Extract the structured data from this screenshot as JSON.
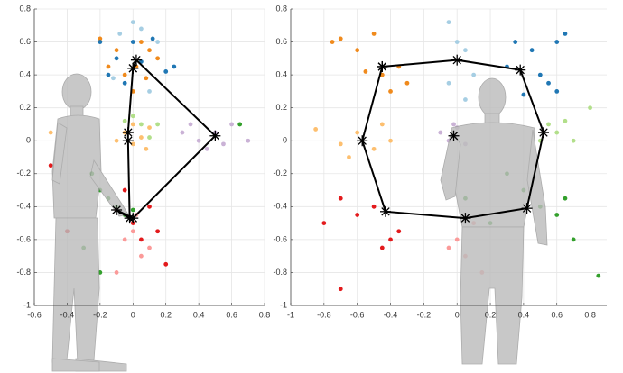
{
  "chart_data": [
    {
      "type": "scatter",
      "xlim": [
        -0.6,
        0.8
      ],
      "ylim": [
        -1,
        0.8
      ],
      "xticks": [
        -0.6,
        -0.4,
        -0.2,
        0,
        0.2,
        0.4,
        0.6,
        0.8
      ],
      "yticks": [
        -1,
        -0.8,
        -0.6,
        -0.4,
        -0.2,
        0,
        0.2,
        0.4,
        0.6,
        0.8
      ],
      "grid": true,
      "series": [
        {
          "color": "#f08a1c",
          "style": "dots",
          "x": [
            -0.2,
            -0.1,
            0.05,
            0.1,
            0.02,
            -0.05,
            0.08,
            0.15,
            -0.15,
            0.0
          ],
          "y": [
            0.62,
            0.55,
            0.6,
            0.55,
            0.45,
            0.4,
            0.38,
            0.5,
            0.45,
            0.3
          ]
        },
        {
          "color": "#2077b4",
          "style": "dots",
          "x": [
            -0.2,
            -0.1,
            -0.15,
            0.05,
            0.12,
            0.2,
            -0.05,
            0.25,
            0.0
          ],
          "y": [
            0.6,
            0.5,
            0.4,
            0.48,
            0.62,
            0.42,
            0.35,
            0.45,
            0.6
          ]
        },
        {
          "color": "#a6cee3",
          "style": "dots",
          "x": [
            -0.12,
            0.0,
            0.05,
            -0.08,
            0.1,
            0.15
          ],
          "y": [
            0.38,
            0.72,
            0.68,
            0.65,
            0.3,
            0.6
          ]
        },
        {
          "color": "#fdbf6f",
          "style": "dots",
          "x": [
            -0.05,
            0.0,
            0.05,
            0.1,
            -0.1,
            0.08,
            -0.5,
            0.0
          ],
          "y": [
            0.05,
            -0.02,
            0.02,
            0.08,
            0.0,
            -0.05,
            0.05,
            0.1
          ]
        },
        {
          "color": "#b2df8a",
          "style": "dots",
          "x": [
            -0.05,
            0.05,
            0.0,
            0.1,
            -0.25,
            0.15
          ],
          "y": [
            0.12,
            0.1,
            0.15,
            0.02,
            -0.2,
            0.1
          ]
        },
        {
          "color": "#cab2d6",
          "style": "dots",
          "x": [
            0.3,
            0.4,
            0.5,
            0.6,
            0.55,
            0.7,
            0.35,
            0.45
          ],
          "y": [
            0.05,
            0.0,
            0.05,
            0.1,
            -0.02,
            0.0,
            0.1,
            -0.05
          ]
        },
        {
          "color": "#33a02c",
          "style": "dots",
          "x": [
            -0.2,
            -0.15,
            -0.1,
            -0.3,
            -0.25,
            -0.05,
            -0.2,
            0.0,
            0.65
          ],
          "y": [
            -0.3,
            -0.35,
            -0.4,
            -0.65,
            -0.2,
            -0.45,
            -0.8,
            -0.42,
            0.1
          ]
        },
        {
          "color": "#e31a1c",
          "style": "dots",
          "x": [
            -0.5,
            -0.1,
            0.0,
            0.05,
            0.1,
            0.15,
            -0.05,
            0.2,
            -0.4
          ],
          "y": [
            -0.15,
            -0.42,
            -0.5,
            -0.6,
            -0.4,
            -0.55,
            -0.3,
            -0.75,
            -0.55
          ]
        },
        {
          "color": "#fb9a99",
          "style": "dots",
          "x": [
            0.0,
            0.05,
            -0.05,
            0.1,
            0.02,
            -0.1
          ],
          "y": [
            -0.55,
            -0.7,
            -0.6,
            -0.65,
            -0.45,
            -0.8
          ]
        },
        {
          "color": "#000000",
          "style": "star-line",
          "x": [
            0.0,
            0.02,
            0.5,
            0.0,
            -0.1,
            -0.02,
            -0.03,
            -0.03,
            0.0
          ],
          "y": [
            0.44,
            0.49,
            0.03,
            -0.47,
            -0.42,
            -0.47,
            0.0,
            0.05,
            0.44
          ]
        }
      ]
    },
    {
      "type": "scatter",
      "xlim": [
        -1,
        0.9
      ],
      "ylim": [
        -1,
        0.8
      ],
      "xticks": [
        -1,
        -0.8,
        -0.6,
        -0.4,
        -0.2,
        0,
        0.2,
        0.4,
        0.6,
        0.8
      ],
      "yticks": [
        -1,
        -0.8,
        -0.6,
        -0.4,
        -0.2,
        0,
        0.2,
        0.4,
        0.6,
        0.8
      ],
      "grid": true,
      "series": [
        {
          "color": "#f08a1c",
          "style": "dots",
          "x": [
            -0.7,
            -0.75,
            -0.6,
            -0.45,
            -0.35,
            -0.3,
            -0.55,
            -0.4,
            -0.5
          ],
          "y": [
            0.62,
            0.6,
            0.55,
            0.4,
            0.45,
            0.35,
            0.42,
            0.3,
            0.65
          ]
        },
        {
          "color": "#2077b4",
          "style": "dots",
          "x": [
            0.35,
            0.45,
            0.6,
            0.65,
            0.5,
            0.55,
            0.3,
            0.4,
            0.6
          ],
          "y": [
            0.6,
            0.55,
            0.6,
            0.65,
            0.4,
            0.35,
            0.45,
            0.28,
            0.3
          ]
        },
        {
          "color": "#a6cee3",
          "style": "dots",
          "x": [
            -0.05,
            0.0,
            0.05,
            -0.05,
            0.1,
            0.05
          ],
          "y": [
            0.72,
            0.6,
            0.55,
            0.35,
            0.4,
            0.25
          ]
        },
        {
          "color": "#fdbf6f",
          "style": "dots",
          "x": [
            -0.85,
            -0.7,
            -0.6,
            -0.5,
            -0.45,
            -0.65,
            -0.4
          ],
          "y": [
            0.07,
            -0.02,
            0.05,
            -0.05,
            0.1,
            -0.1,
            0.0
          ]
        },
        {
          "color": "#cab2d6",
          "style": "dots",
          "x": [
            -0.1,
            -0.05,
            0.0,
            0.05,
            -0.02
          ],
          "y": [
            0.05,
            0.0,
            0.08,
            -0.02,
            0.1
          ]
        },
        {
          "color": "#b2df8a",
          "style": "dots",
          "x": [
            0.55,
            0.6,
            0.7,
            0.8,
            0.5,
            0.65
          ],
          "y": [
            0.1,
            0.05,
            0.0,
            0.2,
            0.0,
            0.12
          ]
        },
        {
          "color": "#33a02c",
          "style": "dots",
          "x": [
            0.3,
            0.4,
            0.5,
            0.65,
            0.7,
            0.2,
            0.6,
            0.85,
            0.05
          ],
          "y": [
            -0.2,
            -0.3,
            -0.4,
            -0.35,
            -0.6,
            -0.5,
            -0.45,
            -0.82,
            -0.35
          ]
        },
        {
          "color": "#e31a1c",
          "style": "dots",
          "x": [
            -0.8,
            -0.7,
            -0.6,
            -0.5,
            -0.4,
            -0.35,
            -0.7,
            -0.45
          ],
          "y": [
            -0.5,
            -0.35,
            -0.45,
            -0.4,
            -0.6,
            -0.55,
            -0.9,
            -0.65
          ]
        },
        {
          "color": "#fb9a99",
          "style": "dots",
          "x": [
            0.0,
            0.05,
            0.1,
            -0.05,
            0.15
          ],
          "y": [
            -0.6,
            -0.7,
            -0.5,
            -0.65,
            -0.8
          ]
        },
        {
          "color": "#000000",
          "style": "star-line",
          "x": [
            -0.45,
            0.0,
            0.38,
            0.52,
            0.42,
            0.05,
            -0.43,
            -0.57,
            -0.45
          ],
          "y": [
            0.45,
            0.49,
            0.43,
            0.05,
            -0.41,
            -0.47,
            -0.43,
            0.0,
            0.45
          ]
        },
        {
          "color": "#000000",
          "style": "star",
          "x": [
            -0.02
          ],
          "y": [
            0.03
          ]
        }
      ]
    }
  ]
}
